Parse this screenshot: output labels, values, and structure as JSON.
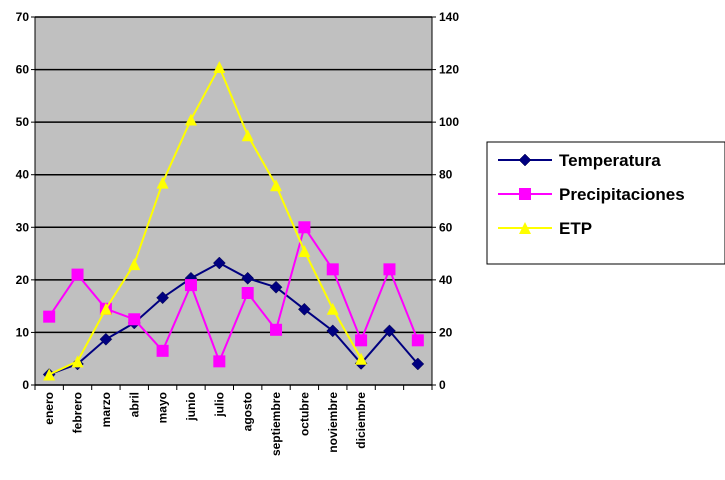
{
  "chart_data": {
    "type": "line",
    "categories": [
      "enero",
      "febrero",
      "marzo",
      "abril",
      "mayo",
      "junio",
      "julio",
      "agosto",
      "septiembre",
      "octubre",
      "noviembre",
      "diciembre",
      "",
      ""
    ],
    "series": [
      {
        "name": "Temperatura",
        "axis": "left",
        "color": "#000080",
        "marker": "diamond",
        "values": [
          2,
          4,
          8.7,
          11.8,
          16.6,
          20.3,
          23.2,
          20.3,
          18.6,
          14.4,
          10.3,
          4.1,
          10.3,
          4
        ]
      },
      {
        "name": "Precipitaciones",
        "axis": "right",
        "color": "#ff00ff",
        "marker": "square",
        "values": [
          26,
          42,
          29,
          25,
          13,
          38,
          9,
          35,
          21,
          60,
          44,
          17,
          44,
          17
        ]
      },
      {
        "name": "ETP",
        "axis": "right",
        "color": "#ffff00",
        "marker": "triangle",
        "values": [
          4,
          9,
          29,
          46,
          77,
          101,
          121,
          95,
          76,
          51,
          29,
          10,
          null,
          null
        ]
      }
    ],
    "ylim_left": [
      0,
      70
    ],
    "yticks_left": [
      "0",
      "10",
      "20",
      "30",
      "40",
      "50",
      "60",
      "70"
    ],
    "ylim_right": [
      0,
      140
    ],
    "yticks_right": [
      "0",
      "20",
      "40",
      "60",
      "80",
      "100",
      "120",
      "140"
    ],
    "grid": true,
    "plot_background": "#c0c0c0",
    "legend_position": "right"
  }
}
